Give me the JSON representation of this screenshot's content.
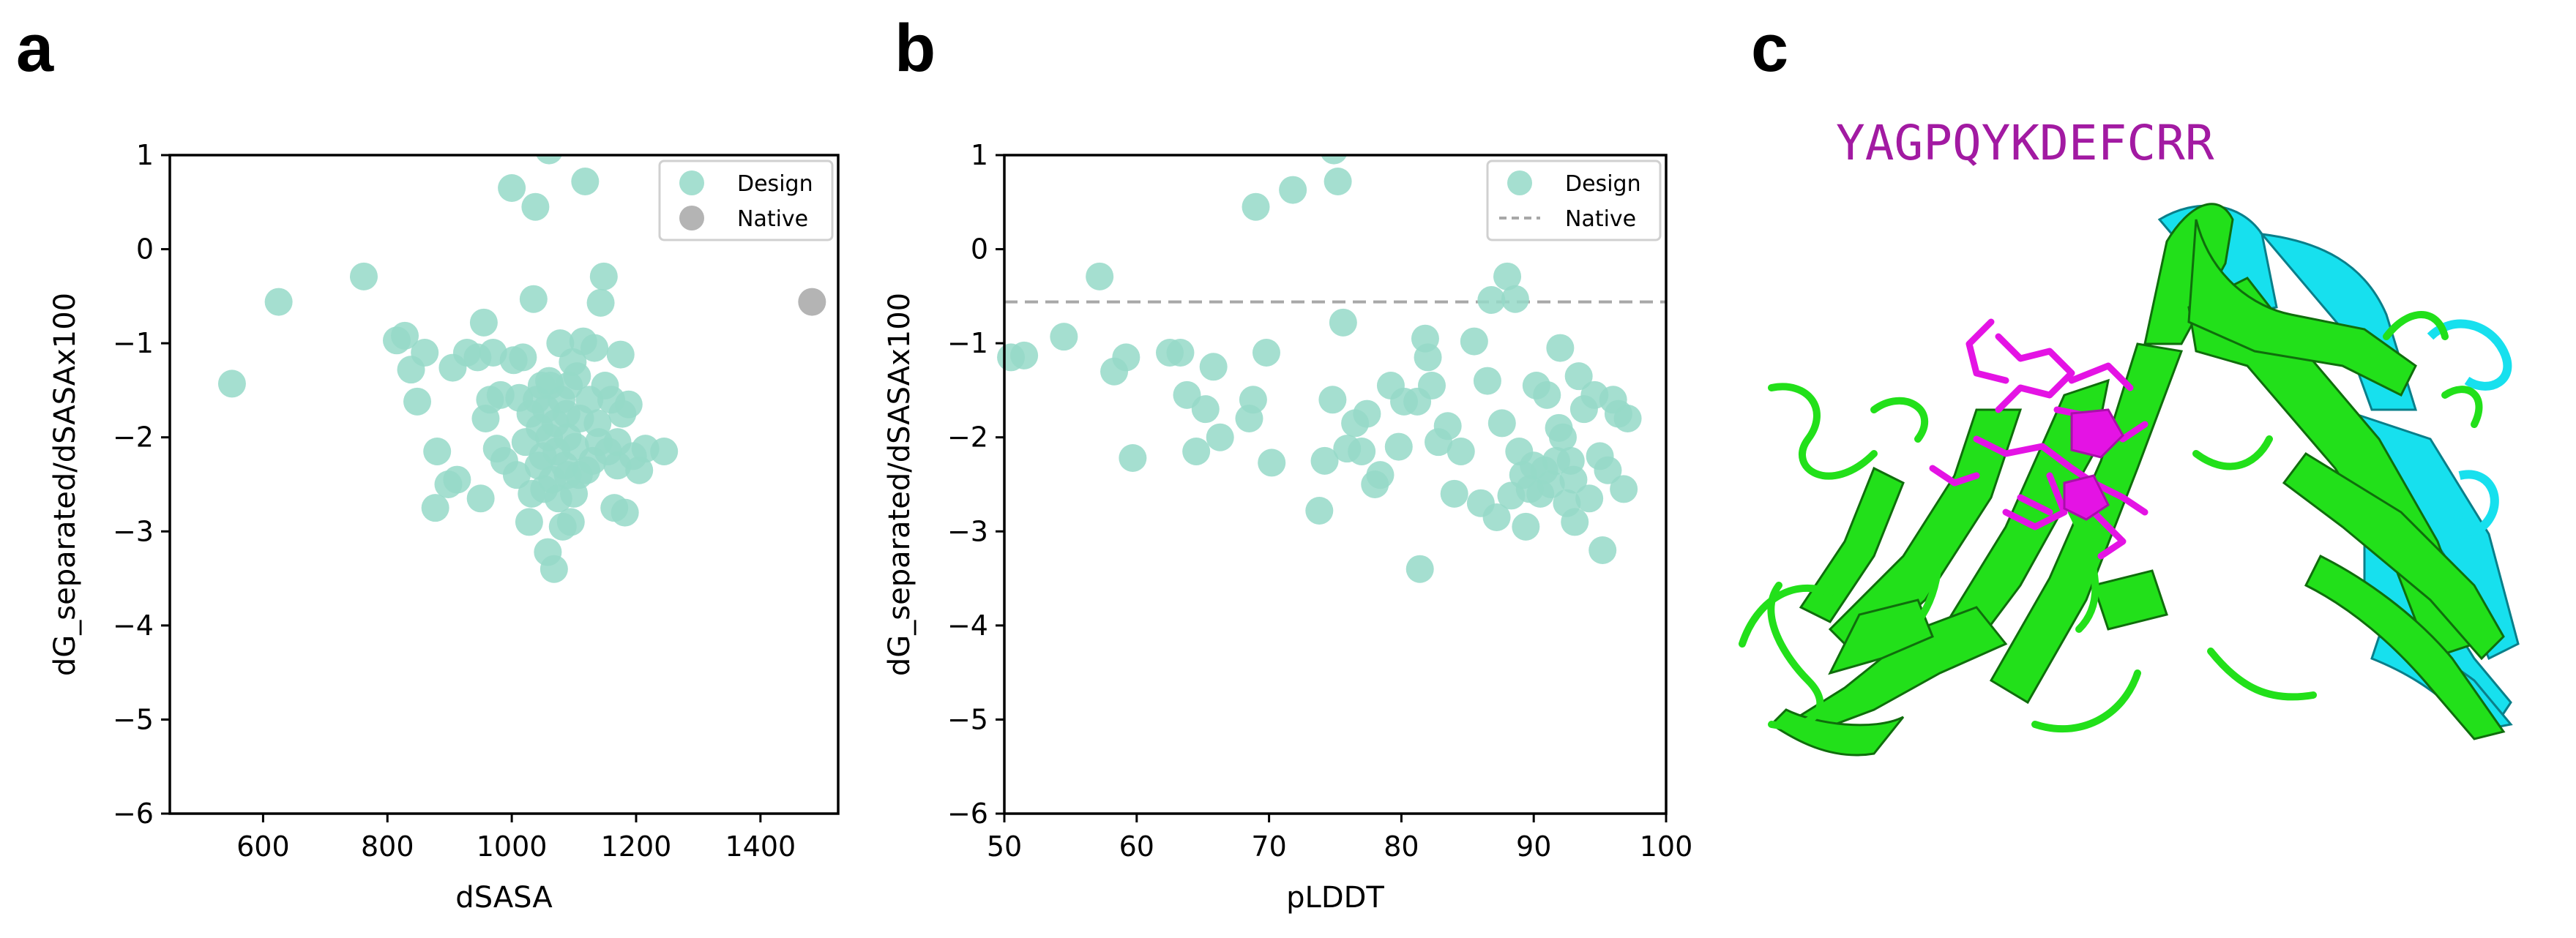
{
  "panels": {
    "a": "a",
    "b": "b",
    "c": "c"
  },
  "colors": {
    "design": "#95d9c8",
    "native": "#b4b4b4",
    "dash": "#a8a8a8",
    "sequence": "#a21aa2",
    "protein_green": "#22e01a",
    "protein_cyan": "#17e0ee",
    "ligand_magenta": "#e413e4"
  },
  "chart_data": [
    {
      "id": "a",
      "type": "scatter",
      "xlabel": "dSASA",
      "ylabel": "dG_separated/dSASAx100",
      "xlim": [
        450,
        1525
      ],
      "ylim": [
        -6,
        1
      ],
      "xticks": [
        600,
        800,
        1000,
        1200,
        1400
      ],
      "yticks": [
        1,
        0,
        -1,
        -2,
        -3,
        -4,
        -5,
        -6
      ],
      "ytick_labels": [
        "1",
        "0",
        "−1",
        "−2",
        "−3",
        "−4",
        "−5",
        "−6"
      ],
      "legend": [
        "Design",
        "Native"
      ],
      "legend_position": "top-right",
      "series": [
        {
          "name": "Design",
          "points": [
            [
              550,
              -1.43
            ],
            [
              625,
              -0.56
            ],
            [
              762,
              -0.29
            ],
            [
              815,
              -0.97
            ],
            [
              828,
              -0.92
            ],
            [
              838,
              -1.28
            ],
            [
              848,
              -1.62
            ],
            [
              860,
              -1.1
            ],
            [
              877,
              -2.75
            ],
            [
              880,
              -2.15
            ],
            [
              898,
              -2.5
            ],
            [
              905,
              -1.26
            ],
            [
              912,
              -2.45
            ],
            [
              928,
              -1.1
            ],
            [
              945,
              -1.15
            ],
            [
              950,
              -2.65
            ],
            [
              955,
              -0.78
            ],
            [
              958,
              -1.8
            ],
            [
              965,
              -1.6
            ],
            [
              970,
              -1.1
            ],
            [
              976,
              -2.12
            ],
            [
              982,
              -1.55
            ],
            [
              988,
              -2.25
            ],
            [
              1000,
              0.65
            ],
            [
              1003,
              -1.18
            ],
            [
              1008,
              -2.4
            ],
            [
              1012,
              -1.58
            ],
            [
              1018,
              -1.15
            ],
            [
              1022,
              -2.05
            ],
            [
              1028,
              -2.9
            ],
            [
              1030,
              -1.75
            ],
            [
              1032,
              -2.6
            ],
            [
              1035,
              -0.53
            ],
            [
              1038,
              0.45
            ],
            [
              1040,
              -1.6
            ],
            [
              1043,
              -2.3
            ],
            [
              1045,
              -1.9
            ],
            [
              1048,
              -1.45
            ],
            [
              1050,
              -2.2
            ],
            [
              1052,
              -2.55
            ],
            [
              1055,
              -1.7
            ],
            [
              1058,
              -3.22
            ],
            [
              1060,
              1.05
            ],
            [
              1060,
              -2.0
            ],
            [
              1062,
              -1.45
            ],
            [
              1065,
              -2.45
            ],
            [
              1068,
              -3.4
            ],
            [
              1070,
              -1.85
            ],
            [
              1072,
              -2.15
            ],
            [
              1075,
              -2.65
            ],
            [
              1078,
              -1.0
            ],
            [
              1080,
              -1.6
            ],
            [
              1082,
              -2.95
            ],
            [
              1085,
              -2.3
            ],
            [
              1088,
              -1.75
            ],
            [
              1090,
              -2.0
            ],
            [
              1092,
              -1.45
            ],
            [
              1095,
              -2.9
            ],
            [
              1098,
              -1.2
            ],
            [
              1100,
              -2.6
            ],
            [
              1102,
              -2.1
            ],
            [
              1105,
              -1.35
            ],
            [
              1108,
              -2.4
            ],
            [
              1110,
              -1.8
            ],
            [
              1115,
              -0.98
            ],
            [
              1118,
              0.72
            ],
            [
              1120,
              -2.35
            ],
            [
              1125,
              -1.6
            ],
            [
              1130,
              -2.25
            ],
            [
              1133,
              -1.05
            ],
            [
              1138,
              -1.85
            ],
            [
              1140,
              -2.05
            ],
            [
              1143,
              -0.57
            ],
            [
              1148,
              -0.29
            ],
            [
              1150,
              -1.45
            ],
            [
              1155,
              -2.15
            ],
            [
              1160,
              -1.6
            ],
            [
              1165,
              -2.75
            ],
            [
              1170,
              -2.3
            ],
            [
              1175,
              -1.12
            ],
            [
              1178,
              -1.75
            ],
            [
              1182,
              -2.8
            ],
            [
              1188,
              -1.65
            ],
            [
              1195,
              -2.2
            ],
            [
              1205,
              -2.35
            ],
            [
              1215,
              -2.12
            ],
            [
              1245,
              -2.15
            ],
            [
              1170,
              -2.05
            ],
            [
              1060,
              -1.4
            ],
            [
              1090,
              -2.4
            ]
          ]
        },
        {
          "name": "Native",
          "points": [
            [
              1483,
              -0.56
            ]
          ]
        }
      ]
    },
    {
      "id": "b",
      "type": "scatter",
      "xlabel": "pLDDT",
      "ylabel": "dG_separated/dSASAx100",
      "xlim": [
        50,
        100
      ],
      "ylim": [
        -6,
        1
      ],
      "xticks": [
        50,
        60,
        70,
        80,
        90,
        100
      ],
      "yticks": [
        1,
        0,
        -1,
        -2,
        -3,
        -4,
        -5,
        -6
      ],
      "ytick_labels": [
        "1",
        "0",
        "−1",
        "−2",
        "−3",
        "−4",
        "−5",
        "−6"
      ],
      "legend": [
        "Design",
        "Native"
      ],
      "legend_position": "top-right",
      "native_line": -0.56,
      "series": [
        {
          "name": "Design",
          "points": [
            [
              50.5,
              -1.15
            ],
            [
              51.5,
              -1.13
            ],
            [
              54.5,
              -0.93
            ],
            [
              57.2,
              -0.29
            ],
            [
              58.3,
              -1.3
            ],
            [
              59.2,
              -1.15
            ],
            [
              59.7,
              -2.22
            ],
            [
              62.5,
              -1.1
            ],
            [
              63.3,
              -1.1
            ],
            [
              63.8,
              -1.55
            ],
            [
              64.5,
              -2.15
            ],
            [
              65.2,
              -1.7
            ],
            [
              65.8,
              -1.25
            ],
            [
              66.3,
              -2.0
            ],
            [
              68.5,
              -1.8
            ],
            [
              68.8,
              -1.6
            ],
            [
              69.0,
              0.45
            ],
            [
              69.8,
              -1.1
            ],
            [
              70.2,
              -2.27
            ],
            [
              71.8,
              0.63
            ],
            [
              73.8,
              -2.78
            ],
            [
              74.2,
              -2.25
            ],
            [
              74.8,
              -1.6
            ],
            [
              74.9,
              1.05
            ],
            [
              75.2,
              0.72
            ],
            [
              75.6,
              -0.78
            ],
            [
              75.9,
              -2.12
            ],
            [
              76.5,
              -1.85
            ],
            [
              77.0,
              -2.15
            ],
            [
              77.4,
              -1.75
            ],
            [
              78.0,
              -2.5
            ],
            [
              78.4,
              -2.4
            ],
            [
              79.2,
              -1.45
            ],
            [
              79.8,
              -2.1
            ],
            [
              80.2,
              -1.62
            ],
            [
              81.2,
              -1.62
            ],
            [
              81.4,
              -3.4
            ],
            [
              81.8,
              -0.95
            ],
            [
              82.0,
              -1.15
            ],
            [
              82.3,
              -1.45
            ],
            [
              82.8,
              -2.05
            ],
            [
              83.5,
              -1.88
            ],
            [
              84.0,
              -2.6
            ],
            [
              84.5,
              -2.15
            ],
            [
              85.5,
              -0.98
            ],
            [
              86.0,
              -2.7
            ],
            [
              86.5,
              -1.4
            ],
            [
              86.8,
              -0.54
            ],
            [
              87.2,
              -2.85
            ],
            [
              87.6,
              -1.85
            ],
            [
              88.0,
              -0.29
            ],
            [
              88.3,
              -2.62
            ],
            [
              88.6,
              -0.53
            ],
            [
              88.9,
              -2.15
            ],
            [
              89.2,
              -2.4
            ],
            [
              89.4,
              -2.95
            ],
            [
              89.7,
              -2.55
            ],
            [
              90.0,
              -2.3
            ],
            [
              90.2,
              -1.45
            ],
            [
              90.5,
              -2.6
            ],
            [
              90.8,
              -2.35
            ],
            [
              91.0,
              -1.55
            ],
            [
              91.3,
              -2.5
            ],
            [
              91.7,
              -2.25
            ],
            [
              92.0,
              -1.05
            ],
            [
              92.2,
              -2.0
            ],
            [
              92.5,
              -2.7
            ],
            [
              92.8,
              -2.25
            ],
            [
              93.1,
              -2.9
            ],
            [
              93.4,
              -1.35
            ],
            [
              93.8,
              -1.7
            ],
            [
              94.2,
              -2.65
            ],
            [
              94.6,
              -1.55
            ],
            [
              95.0,
              -2.2
            ],
            [
              95.2,
              -3.2
            ],
            [
              95.6,
              -2.35
            ],
            [
              96.0,
              -1.6
            ],
            [
              96.4,
              -1.75
            ],
            [
              96.8,
              -2.55
            ],
            [
              97.1,
              -1.8
            ],
            [
              91.9,
              -1.9
            ],
            [
              93.0,
              -2.45
            ]
          ]
        }
      ]
    }
  ],
  "panel_c": {
    "sequence": "YAGPQYKDEFCRR"
  }
}
